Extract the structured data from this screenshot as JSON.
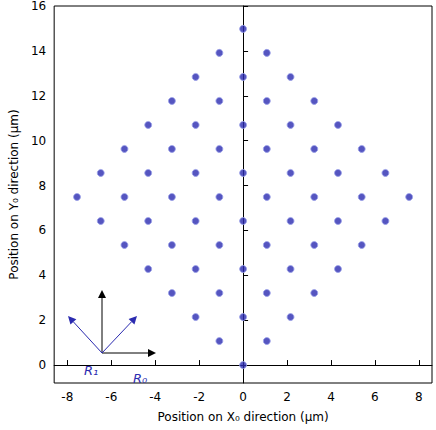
{
  "chart_data": {
    "type": "scatter",
    "xlabel": "Position on X₀ direction (μm)",
    "ylabel": "Position on Y₀ direction (μm)",
    "x": [
      -7.56,
      -6.48,
      -6.48,
      -5.4,
      -5.4,
      -5.4,
      -4.32,
      -4.32,
      -4.32,
      -4.32,
      -3.24,
      -3.24,
      -3.24,
      -3.24,
      -3.24,
      -2.16,
      -2.16,
      -2.16,
      -2.16,
      -2.16,
      -2.16,
      -1.08,
      -1.08,
      -1.08,
      -1.08,
      -1.08,
      -1.08,
      -1.08,
      0,
      0,
      0,
      0,
      0,
      0,
      0,
      0,
      1.08,
      1.08,
      1.08,
      1.08,
      1.08,
      1.08,
      1.08,
      2.16,
      2.16,
      2.16,
      2.16,
      2.16,
      2.16,
      3.24,
      3.24,
      3.24,
      3.24,
      3.24,
      4.32,
      4.32,
      4.32,
      4.32,
      5.4,
      5.4,
      5.4,
      6.48,
      6.48,
      7.56
    ],
    "y": [
      7.49,
      6.42,
      8.56,
      5.35,
      7.49,
      9.63,
      4.28,
      6.42,
      8.56,
      10.7,
      3.21,
      5.35,
      7.49,
      9.63,
      11.77,
      2.14,
      4.28,
      6.42,
      8.56,
      10.7,
      12.84,
      1.07,
      3.21,
      5.35,
      7.49,
      9.63,
      11.77,
      13.91,
      0,
      2.14,
      4.28,
      6.42,
      8.56,
      10.7,
      12.84,
      14.98,
      1.07,
      3.21,
      5.35,
      7.49,
      9.63,
      11.77,
      13.91,
      2.14,
      4.28,
      6.42,
      8.56,
      10.7,
      12.84,
      3.21,
      5.35,
      7.49,
      9.63,
      11.77,
      4.28,
      6.42,
      8.56,
      10.7,
      5.35,
      7.49,
      9.63,
      6.42,
      8.56,
      7.49
    ],
    "color": "#2b2bb0",
    "marker": "circle",
    "xlim": [
      -8.6,
      8.6
    ],
    "xticks": [
      -8,
      -6,
      -4,
      -2,
      0,
      2,
      4,
      6,
      8
    ],
    "ylim": [
      -0.8,
      16
    ],
    "yticks": [
      0,
      2,
      4,
      6,
      8,
      10,
      12,
      14,
      16
    ],
    "grid": false,
    "annotations": [
      "R₁",
      "R₀"
    ]
  }
}
